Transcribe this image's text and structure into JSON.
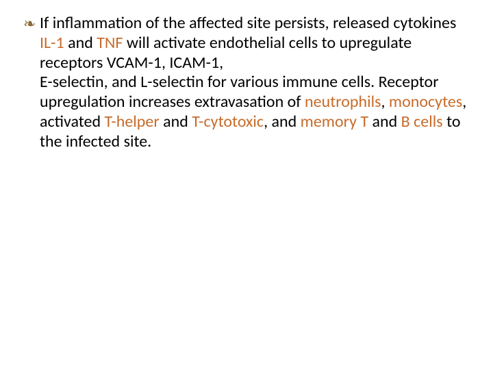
{
  "slide": {
    "background_color": "#ffffff",
    "text_color": "#000000",
    "highlight_color": "#c76b2a",
    "bullet_color": "#8b6a3a",
    "font_family": "Candara",
    "font_size_pt": 24,
    "bullet_glyph": "❧",
    "segments": [
      {
        "key": "s0",
        "text": "If inflammation of the affected site persists, released cytokines ",
        "hl": false
      },
      {
        "key": "s1",
        "text": "IL-1",
        "hl": true
      },
      {
        "key": "s2",
        "text": " and ",
        "hl": false
      },
      {
        "key": "s3",
        "text": "TNF",
        "hl": true
      },
      {
        "key": "s4",
        "text": " will activate endothelial cells to upregulate receptors VCAM-1, ICAM-1,",
        "hl": false
      },
      {
        "key": "br1",
        "text": "",
        "hl": false
      },
      {
        "key": "s5",
        "text": "E-selectin, and L-selectin for various immune cells. Receptor upregulation increases extravasation of ",
        "hl": false
      },
      {
        "key": "s6",
        "text": "neutrophils",
        "hl": true
      },
      {
        "key": "s7",
        "text": ", ",
        "hl": false
      },
      {
        "key": "s8",
        "text": "monocytes",
        "hl": true
      },
      {
        "key": "s9",
        "text": ", activated ",
        "hl": false
      },
      {
        "key": "s10",
        "text": "T-helper",
        "hl": true
      },
      {
        "key": "s11",
        "text": " and ",
        "hl": false
      },
      {
        "key": "s12",
        "text": "T-cytotoxic",
        "hl": true
      },
      {
        "key": "s13",
        "text": ", and ",
        "hl": false
      },
      {
        "key": "s14",
        "text": "memory T",
        "hl": true
      },
      {
        "key": "s15",
        "text": " and ",
        "hl": false
      },
      {
        "key": "s16",
        "text": "B cells",
        "hl": true
      },
      {
        "key": "s17",
        "text": " to the infected site.",
        "hl": false
      }
    ]
  }
}
